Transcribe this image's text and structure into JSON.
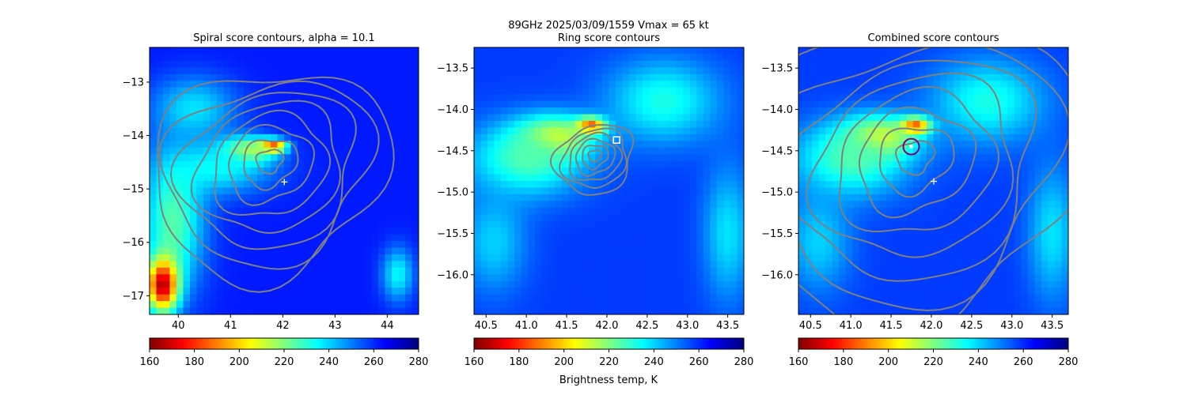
{
  "figure": {
    "suptitle_line1": "89GHz  2025/03/09/1559    Vmax = 65 kt",
    "colorbar_label": "Brightness temp, K"
  },
  "colormap": {
    "name": "jet_r",
    "stops": [
      "#7f0000",
      "#ff0000",
      "#ff7f00",
      "#ffff00",
      "#7fff7f",
      "#00ffff",
      "#007fff",
      "#0000ff",
      "#00007f"
    ],
    "contour_color": "#808080",
    "center_marker_color": "#ffffff",
    "ring_marker_color": "#ffffff",
    "circle_color": "#800080",
    "nodata_color": "#ffffff"
  },
  "chart_data": [
    {
      "type": "heatmap",
      "title": "Spiral score contours, alpha = 10.1",
      "xlabel": "",
      "ylabel": "",
      "xlim": [
        39.45,
        44.6
      ],
      "ylim": [
        -17.35,
        -12.35
      ],
      "xticks": [
        40,
        41,
        42,
        43,
        44
      ],
      "xtick_labels": [
        "40",
        "41",
        "42",
        "43",
        "44"
      ],
      "yticks": [
        -13,
        -14,
        -15,
        -16,
        -17
      ],
      "ytick_labels": [
        "−13",
        "−14",
        "−15",
        "−16",
        "−17"
      ],
      "colorbar": {
        "vmin": 160,
        "vmax": 280,
        "ticks": [
          160,
          180,
          200,
          220,
          240,
          260,
          280
        ],
        "tick_labels": [
          "160",
          "180",
          "200",
          "220",
          "240",
          "260",
          "280"
        ]
      },
      "background_tb": 262,
      "tb_features": [
        {
          "x": 41.8,
          "y": -14.2,
          "tb": 160,
          "rx": 0.25,
          "ry": 0.12
        },
        {
          "x": 41.3,
          "y": -14.3,
          "tb": 195,
          "rx": 0.5,
          "ry": 0.25
        },
        {
          "x": 40.8,
          "y": -14.6,
          "tb": 235,
          "rx": 1.0,
          "ry": 0.5
        },
        {
          "x": 39.9,
          "y": -15.6,
          "tb": 225,
          "rx": 0.6,
          "ry": 1.3
        },
        {
          "x": 39.7,
          "y": -16.8,
          "tb": 165,
          "rx": 0.3,
          "ry": 0.5
        },
        {
          "x": 40.3,
          "y": -13.5,
          "tb": 238,
          "rx": 0.8,
          "ry": 0.6
        },
        {
          "x": 44.2,
          "y": -16.6,
          "tb": 235,
          "rx": 0.3,
          "ry": 0.5
        }
      ],
      "center": {
        "x": 42.03,
        "y": -14.87
      },
      "contour_center": {
        "x": 41.75,
        "y": -14.45
      },
      "contour_radii": [
        0.22,
        0.45,
        0.7,
        0.95,
        1.2,
        1.45,
        1.7,
        1.95
      ],
      "ring_center": null,
      "circle_center": null
    },
    {
      "type": "heatmap",
      "title": "Ring score contours",
      "xlabel": "",
      "ylabel": "",
      "xlim": [
        40.35,
        43.7
      ],
      "ylim": [
        -16.48,
        -13.25
      ],
      "xticks": [
        40.5,
        41.0,
        41.5,
        42.0,
        42.5,
        43.0,
        43.5
      ],
      "xtick_labels": [
        "40.5",
        "41.0",
        "41.5",
        "42.0",
        "42.5",
        "43.0",
        "43.5"
      ],
      "yticks": [
        -13.5,
        -14.0,
        -14.5,
        -15.0,
        -15.5,
        -16.0
      ],
      "ytick_labels": [
        "−13.5",
        "−14.0",
        "−14.5",
        "−15.0",
        "−15.5",
        "−16.0"
      ],
      "colorbar": {
        "vmin": 160,
        "vmax": 280,
        "ticks": [
          160,
          180,
          200,
          220,
          240,
          260,
          280
        ],
        "tick_labels": [
          "160",
          "180",
          "200",
          "220",
          "240",
          "260",
          "280"
        ]
      },
      "background_tb": 258,
      "tb_features": [
        {
          "x": 41.8,
          "y": -14.2,
          "tb": 163,
          "rx": 0.18,
          "ry": 0.1
        },
        {
          "x": 41.35,
          "y": -14.35,
          "tb": 198,
          "rx": 0.45,
          "ry": 0.25
        },
        {
          "x": 41.0,
          "y": -14.6,
          "tb": 225,
          "rx": 0.7,
          "ry": 0.45
        },
        {
          "x": 42.7,
          "y": -13.9,
          "tb": 232,
          "rx": 0.7,
          "ry": 0.5
        },
        {
          "x": 40.6,
          "y": -15.6,
          "tb": 240,
          "rx": 0.4,
          "ry": 0.6
        },
        {
          "x": 43.5,
          "y": -15.5,
          "tb": 238,
          "rx": 0.3,
          "ry": 0.8
        }
      ],
      "center": null,
      "contour_center": {
        "x": 41.85,
        "y": -14.55
      },
      "contour_radii": [
        0.07,
        0.14,
        0.21,
        0.28,
        0.35,
        0.42
      ],
      "ring_center": {
        "x": 42.12,
        "y": -14.37
      },
      "circle_center": null
    },
    {
      "type": "heatmap",
      "title": "Combined score contours",
      "xlabel": "",
      "ylabel": "",
      "xlim": [
        40.35,
        43.7
      ],
      "ylim": [
        -16.48,
        -13.25
      ],
      "xticks": [
        40.5,
        41.0,
        41.5,
        42.0,
        42.5,
        43.0,
        43.5
      ],
      "xtick_labels": [
        "40.5",
        "41.0",
        "41.5",
        "42.0",
        "42.5",
        "43.0",
        "43.5"
      ],
      "yticks": [
        -13.5,
        -14.0,
        -14.5,
        -15.0,
        -15.5,
        -16.0
      ],
      "ytick_labels": [
        "−13.5",
        "−14.0",
        "−14.5",
        "−15.0",
        "−15.5",
        "−16.0"
      ],
      "colorbar": {
        "vmin": 160,
        "vmax": 280,
        "ticks": [
          160,
          180,
          200,
          220,
          240,
          260,
          280
        ],
        "tick_labels": [
          "160",
          "180",
          "200",
          "220",
          "240",
          "260",
          "280"
        ]
      },
      "background_tb": 258,
      "tb_features": [
        {
          "x": 41.8,
          "y": -14.2,
          "tb": 163,
          "rx": 0.18,
          "ry": 0.1
        },
        {
          "x": 41.35,
          "y": -14.35,
          "tb": 198,
          "rx": 0.45,
          "ry": 0.25
        },
        {
          "x": 41.0,
          "y": -14.6,
          "tb": 225,
          "rx": 0.7,
          "ry": 0.45
        },
        {
          "x": 42.7,
          "y": -13.9,
          "tb": 232,
          "rx": 0.7,
          "ry": 0.5
        },
        {
          "x": 40.6,
          "y": -15.6,
          "tb": 240,
          "rx": 0.4,
          "ry": 0.6
        },
        {
          "x": 43.5,
          "y": -15.5,
          "tb": 238,
          "rx": 0.3,
          "ry": 0.8
        }
      ],
      "center": {
        "x": 42.03,
        "y": -14.87
      },
      "contour_center": {
        "x": 41.8,
        "y": -14.55
      },
      "contour_radii": [
        0.2,
        0.4,
        0.62,
        0.85,
        1.08,
        1.32,
        1.56,
        1.8
      ],
      "ring_center": null,
      "circle_center": {
        "x": 41.75,
        "y": -14.45
      }
    }
  ]
}
